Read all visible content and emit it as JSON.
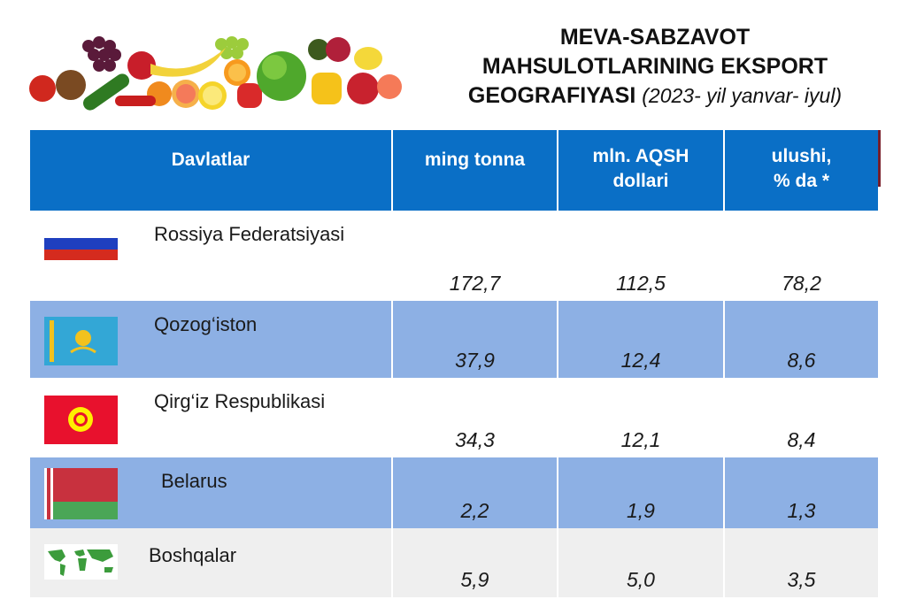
{
  "title": {
    "line1": "MEVA-SABZAVOT",
    "line2": "MAHSULOTLARINING EKSPORT",
    "line3_main": "GEOGRAFIYASI",
    "line3_period": "(2023- yil yanvar- iyul)"
  },
  "table": {
    "headers": {
      "country": "Davlatlar",
      "tonnes": "ming tonna",
      "usd_line1": "mln. AQSH",
      "usd_line2": "dollari",
      "share_line1": "ulushi,",
      "share_line2": "% da *"
    },
    "rows": [
      {
        "country": "Rossiya Federatsiyasi",
        "flag": "russia-flag",
        "tonnes": "172,7",
        "usd": "112,5",
        "share": "78,2"
      },
      {
        "country": "Qozog‘iston",
        "flag": "kazakhstan-flag",
        "tonnes": "37,9",
        "usd": "12,4",
        "share": "8,6"
      },
      {
        "country": "Qirg‘iz Respublikasi",
        "flag": "kyrgyzstan-flag",
        "tonnes": "34,3",
        "usd": "12,1",
        "share": "8,4"
      },
      {
        "country": "Belarus",
        "flag": "belarus-flag",
        "tonnes": "2,2",
        "usd": "1,9",
        "share": "1,3"
      },
      {
        "country": "Boshqalar",
        "flag": "world-map-icon",
        "tonnes": "5,9",
        "usd": "5,0",
        "share": "3,5"
      }
    ]
  },
  "colors": {
    "header_blue": "#0a6fc6",
    "row_blue": "#8db0e4",
    "row_grey": "#efefef"
  }
}
